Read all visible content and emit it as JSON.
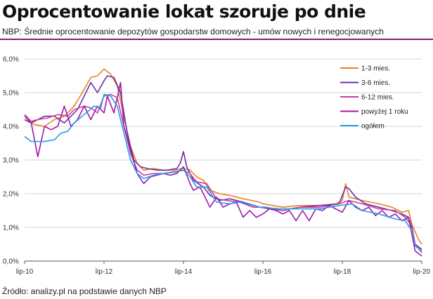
{
  "header": {
    "title": "Oprocentowanie lokat szoruje po dnie",
    "subtitle": "NBP: Średnie oprocentowanie depozytów gospodarstw domowych - umów nowych i renegocjowanych"
  },
  "footer": {
    "source": "Źródło: analizy.pl na podstawie danych NBP"
  },
  "colors": {
    "accent_rule": "#8c1a6a",
    "grid": "#c8c8c8",
    "axis": "#555555"
  },
  "chart_data": {
    "type": "line",
    "title": "",
    "xlabel": "",
    "ylabel": "",
    "ylim": [
      0,
      6
    ],
    "yticks": [
      0,
      1,
      2,
      3,
      4,
      5,
      6
    ],
    "ytick_labels": [
      "0,0%",
      "1,0%",
      "2,0%",
      "3,0%",
      "4,0%",
      "5,0%",
      "6,0%"
    ],
    "x_start": "2010-07",
    "x_end": "2020-07",
    "xticks": [
      "2010-07",
      "2012-07",
      "2014-07",
      "2016-07",
      "2018-07",
      "2020-07"
    ],
    "xtick_labels": [
      "lip-10",
      "lip-12",
      "lip-14",
      "lip-16",
      "lip-18",
      "lip-20"
    ],
    "grid": "horizontal",
    "legend_position": "top-right",
    "series": [
      {
        "name": "1-3 mies.",
        "color": "#e5822a",
        "points": [
          [
            "2010-07",
            4.2
          ],
          [
            "2010-10",
            4.05
          ],
          [
            "2011-01",
            4.0
          ],
          [
            "2011-04",
            4.2
          ],
          [
            "2011-07",
            4.3
          ],
          [
            "2011-10",
            4.6
          ],
          [
            "2012-01",
            5.1
          ],
          [
            "2012-03",
            5.45
          ],
          [
            "2012-05",
            5.5
          ],
          [
            "2012-07",
            5.7
          ],
          [
            "2012-09",
            5.55
          ],
          [
            "2012-11",
            5.2
          ],
          [
            "2013-01",
            4.3
          ],
          [
            "2013-03",
            3.4
          ],
          [
            "2013-05",
            2.9
          ],
          [
            "2013-07",
            2.7
          ],
          [
            "2013-10",
            2.75
          ],
          [
            "2014-01",
            2.7
          ],
          [
            "2014-04",
            2.7
          ],
          [
            "2014-07",
            2.75
          ],
          [
            "2014-09",
            2.7
          ],
          [
            "2014-11",
            2.5
          ],
          [
            "2015-01",
            2.4
          ],
          [
            "2015-03",
            2.1
          ],
          [
            "2015-06",
            2.0
          ],
          [
            "2015-09",
            1.95
          ],
          [
            "2016-01",
            1.85
          ],
          [
            "2016-06",
            1.75
          ],
          [
            "2016-07",
            1.7
          ],
          [
            "2017-01",
            1.6
          ],
          [
            "2017-06",
            1.65
          ],
          [
            "2017-12",
            1.65
          ],
          [
            "2018-05",
            1.7
          ],
          [
            "2018-07",
            1.8
          ],
          [
            "2018-08",
            2.3
          ],
          [
            "2018-09",
            1.9
          ],
          [
            "2019-01",
            1.8
          ],
          [
            "2019-06",
            1.7
          ],
          [
            "2019-10",
            1.6
          ],
          [
            "2020-01",
            1.45
          ],
          [
            "2020-03",
            1.5
          ],
          [
            "2020-04",
            1.1
          ],
          [
            "2020-06",
            0.65
          ],
          [
            "2020-07",
            0.5
          ]
        ]
      },
      {
        "name": "3-6 mies.",
        "color": "#6b2fa5",
        "points": [
          [
            "2010-07",
            4.2
          ],
          [
            "2010-09",
            4.1
          ],
          [
            "2010-11",
            4.2
          ],
          [
            "2011-01",
            4.3
          ],
          [
            "2011-04",
            4.3
          ],
          [
            "2011-07",
            4.1
          ],
          [
            "2011-09",
            4.3
          ],
          [
            "2011-11",
            4.5
          ],
          [
            "2012-01",
            4.9
          ],
          [
            "2012-03",
            5.3
          ],
          [
            "2012-05",
            5.0
          ],
          [
            "2012-07",
            5.35
          ],
          [
            "2012-08",
            5.5
          ],
          [
            "2012-10",
            5.45
          ],
          [
            "2012-12",
            5.0
          ],
          [
            "2013-02",
            3.8
          ],
          [
            "2013-04",
            3.0
          ],
          [
            "2013-06",
            2.8
          ],
          [
            "2013-08",
            2.75
          ],
          [
            "2013-11",
            2.7
          ],
          [
            "2014-02",
            2.7
          ],
          [
            "2014-05",
            2.75
          ],
          [
            "2014-06",
            2.9
          ],
          [
            "2014-07",
            3.25
          ],
          [
            "2014-08",
            2.8
          ],
          [
            "2014-10",
            2.4
          ],
          [
            "2015-01",
            2.2
          ],
          [
            "2015-03",
            1.95
          ],
          [
            "2015-06",
            1.8
          ],
          [
            "2015-09",
            1.85
          ],
          [
            "2016-01",
            1.75
          ],
          [
            "2016-06",
            1.6
          ],
          [
            "2016-09",
            1.55
          ],
          [
            "2017-01",
            1.5
          ],
          [
            "2017-06",
            1.6
          ],
          [
            "2017-12",
            1.65
          ],
          [
            "2018-06",
            1.7
          ],
          [
            "2018-08",
            2.2
          ],
          [
            "2018-09",
            2.15
          ],
          [
            "2018-11",
            1.9
          ],
          [
            "2019-02",
            1.7
          ],
          [
            "2019-06",
            1.6
          ],
          [
            "2019-10",
            1.5
          ],
          [
            "2020-01",
            1.4
          ],
          [
            "2020-03",
            1.3
          ],
          [
            "2020-04",
            1.0
          ],
          [
            "2020-05",
            0.5
          ],
          [
            "2020-07",
            0.35
          ]
        ]
      },
      {
        "name": "6-12 mies.",
        "color": "#cc3e9e",
        "points": [
          [
            "2010-07",
            4.35
          ],
          [
            "2010-09",
            4.15
          ],
          [
            "2010-11",
            4.2
          ],
          [
            "2011-02",
            4.25
          ],
          [
            "2011-05",
            4.35
          ],
          [
            "2011-08",
            4.3
          ],
          [
            "2011-10",
            4.5
          ],
          [
            "2012-01",
            4.6
          ],
          [
            "2012-03",
            4.55
          ],
          [
            "2012-05",
            4.4
          ],
          [
            "2012-07",
            4.9
          ],
          [
            "2012-09",
            4.95
          ],
          [
            "2012-11",
            4.85
          ],
          [
            "2013-01",
            4.0
          ],
          [
            "2013-03",
            3.2
          ],
          [
            "2013-05",
            2.7
          ],
          [
            "2013-07",
            2.55
          ],
          [
            "2013-10",
            2.6
          ],
          [
            "2014-01",
            2.6
          ],
          [
            "2014-04",
            2.65
          ],
          [
            "2014-07",
            2.7
          ],
          [
            "2014-09",
            2.6
          ],
          [
            "2014-11",
            2.35
          ],
          [
            "2015-02",
            2.3
          ],
          [
            "2015-05",
            1.85
          ],
          [
            "2015-08",
            1.8
          ],
          [
            "2015-12",
            1.75
          ],
          [
            "2016-04",
            1.6
          ],
          [
            "2016-08",
            1.6
          ],
          [
            "2017-01",
            1.5
          ],
          [
            "2017-06",
            1.6
          ],
          [
            "2017-12",
            1.6
          ],
          [
            "2018-06",
            1.7
          ],
          [
            "2018-09",
            1.8
          ],
          [
            "2019-01",
            1.7
          ],
          [
            "2019-06",
            1.55
          ],
          [
            "2019-11",
            1.5
          ],
          [
            "2020-02",
            1.3
          ],
          [
            "2020-04",
            1.05
          ],
          [
            "2020-05",
            0.5
          ],
          [
            "2020-07",
            0.25
          ]
        ]
      },
      {
        "name": "powyżej 1 roku",
        "color": "#a01aa8",
        "points": [
          [
            "2010-07",
            4.3
          ],
          [
            "2010-09",
            4.1
          ],
          [
            "2010-11",
            3.1
          ],
          [
            "2011-01",
            4.0
          ],
          [
            "2011-03",
            3.9
          ],
          [
            "2011-05",
            4.0
          ],
          [
            "2011-07",
            4.6
          ],
          [
            "2011-09",
            4.0
          ],
          [
            "2011-11",
            4.2
          ],
          [
            "2012-01",
            4.6
          ],
          [
            "2012-03",
            4.2
          ],
          [
            "2012-05",
            4.6
          ],
          [
            "2012-07",
            4.4
          ],
          [
            "2012-08",
            4.9
          ],
          [
            "2012-10",
            4.4
          ],
          [
            "2012-12",
            5.3
          ],
          [
            "2013-01",
            4.0
          ],
          [
            "2013-03",
            3.3
          ],
          [
            "2013-05",
            2.6
          ],
          [
            "2013-07",
            2.3
          ],
          [
            "2013-09",
            2.5
          ],
          [
            "2013-11",
            2.55
          ],
          [
            "2014-01",
            2.6
          ],
          [
            "2014-03",
            2.55
          ],
          [
            "2014-05",
            2.6
          ],
          [
            "2014-07",
            2.8
          ],
          [
            "2014-09",
            2.3
          ],
          [
            "2014-10",
            2.1
          ],
          [
            "2014-12",
            2.2
          ],
          [
            "2015-01",
            2.0
          ],
          [
            "2015-03",
            1.6
          ],
          [
            "2015-05",
            1.9
          ],
          [
            "2015-07",
            1.6
          ],
          [
            "2015-09",
            1.7
          ],
          [
            "2015-11",
            1.75
          ],
          [
            "2016-01",
            1.3
          ],
          [
            "2016-03",
            1.5
          ],
          [
            "2016-05",
            1.3
          ],
          [
            "2016-07",
            1.4
          ],
          [
            "2016-09",
            1.55
          ],
          [
            "2016-11",
            1.5
          ],
          [
            "2017-01",
            1.4
          ],
          [
            "2017-03",
            1.5
          ],
          [
            "2017-05",
            1.2
          ],
          [
            "2017-07",
            1.5
          ],
          [
            "2017-09",
            1.2
          ],
          [
            "2017-11",
            1.55
          ],
          [
            "2018-01",
            1.5
          ],
          [
            "2018-03",
            1.65
          ],
          [
            "2018-05",
            1.55
          ],
          [
            "2018-07",
            1.45
          ],
          [
            "2018-09",
            1.8
          ],
          [
            "2018-11",
            1.6
          ],
          [
            "2019-01",
            1.5
          ],
          [
            "2019-03",
            1.6
          ],
          [
            "2019-05",
            1.35
          ],
          [
            "2019-07",
            1.5
          ],
          [
            "2019-09",
            1.3
          ],
          [
            "2019-11",
            1.4
          ],
          [
            "2020-01",
            1.2
          ],
          [
            "2020-03",
            1.3
          ],
          [
            "2020-04",
            0.8
          ],
          [
            "2020-05",
            0.3
          ],
          [
            "2020-07",
            0.15
          ]
        ]
      },
      {
        "name": "ogółem",
        "color": "#1f9fe8",
        "points": [
          [
            "2010-07",
            3.7
          ],
          [
            "2010-09",
            3.55
          ],
          [
            "2011-01",
            3.55
          ],
          [
            "2011-04",
            3.6
          ],
          [
            "2011-06",
            3.8
          ],
          [
            "2011-08",
            3.85
          ],
          [
            "2011-10",
            4.1
          ],
          [
            "2012-01",
            4.35
          ],
          [
            "2012-04",
            4.6
          ],
          [
            "2012-06",
            4.55
          ],
          [
            "2012-07",
            4.95
          ],
          [
            "2012-09",
            4.9
          ],
          [
            "2012-11",
            4.6
          ],
          [
            "2013-01",
            3.8
          ],
          [
            "2013-03",
            3.0
          ],
          [
            "2013-05",
            2.6
          ],
          [
            "2013-07",
            2.45
          ],
          [
            "2013-10",
            2.55
          ],
          [
            "2014-01",
            2.6
          ],
          [
            "2014-05",
            2.65
          ],
          [
            "2014-07",
            2.7
          ],
          [
            "2014-09",
            2.5
          ],
          [
            "2014-11",
            2.2
          ],
          [
            "2015-02",
            2.2
          ],
          [
            "2015-05",
            1.75
          ],
          [
            "2015-09",
            1.7
          ],
          [
            "2015-12",
            1.75
          ],
          [
            "2016-06",
            1.6
          ],
          [
            "2016-12",
            1.55
          ],
          [
            "2017-06",
            1.55
          ],
          [
            "2017-12",
            1.55
          ],
          [
            "2018-06",
            1.65
          ],
          [
            "2018-10",
            1.7
          ],
          [
            "2019-01",
            1.5
          ],
          [
            "2019-06",
            1.4
          ],
          [
            "2019-11",
            1.25
          ],
          [
            "2020-02",
            1.2
          ],
          [
            "2020-04",
            0.9
          ],
          [
            "2020-05",
            0.45
          ],
          [
            "2020-07",
            0.3
          ]
        ]
      }
    ]
  }
}
